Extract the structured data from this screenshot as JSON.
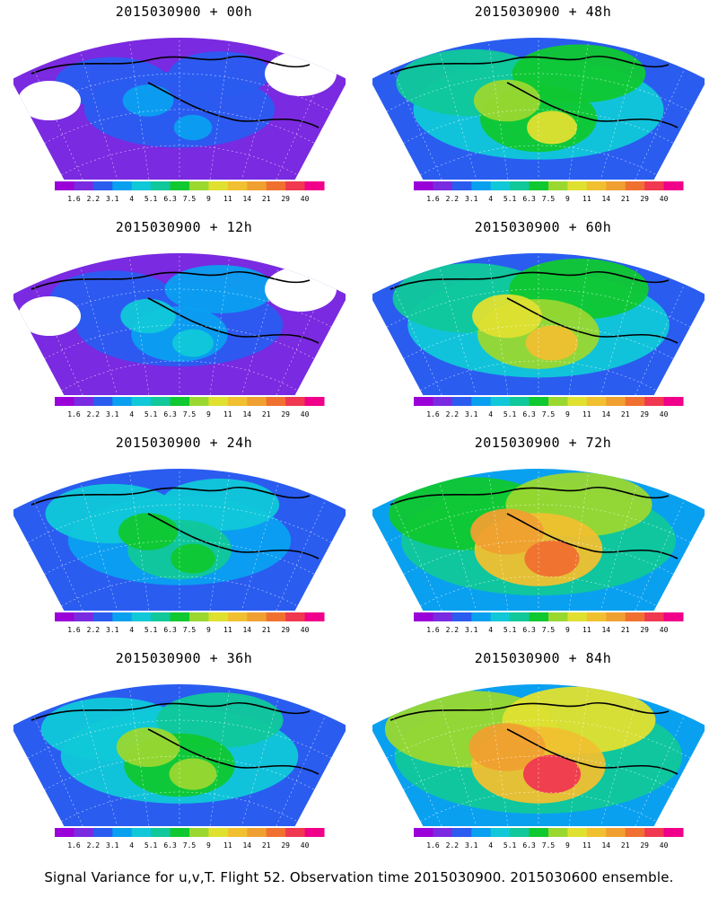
{
  "panels": [
    {
      "title": "2015030900 + 00h",
      "level": 0.18
    },
    {
      "title": "2015030900 + 48h",
      "level": 0.55
    },
    {
      "title": "2015030900 + 12h",
      "level": 0.28
    },
    {
      "title": "2015030900 + 60h",
      "level": 0.62
    },
    {
      "title": "2015030900 + 24h",
      "level": 0.38
    },
    {
      "title": "2015030900 + 72h",
      "level": 0.7
    },
    {
      "title": "2015030900 + 36h",
      "level": 0.47
    },
    {
      "title": "2015030900 + 84h",
      "level": 0.78
    }
  ],
  "colorbar": {
    "labels": [
      "1.6",
      "2.2",
      "3.1",
      "4",
      "5.1",
      "6.3",
      "7.5",
      "9",
      "11",
      "14",
      "21",
      "29",
      "40"
    ],
    "colors": [
      "#9a00d8",
      "#7a2ae0",
      "#2a5cf0",
      "#0aa0f0",
      "#10c8d8",
      "#10c89a",
      "#10c830",
      "#9ad830",
      "#e0e030",
      "#f0c030",
      "#f0a030",
      "#f07030",
      "#f03850",
      "#f0008a"
    ]
  },
  "footer": "Signal Variance for u,v,T. Flight 52. Observation time 2015030900. 2015030600 ensemble."
}
